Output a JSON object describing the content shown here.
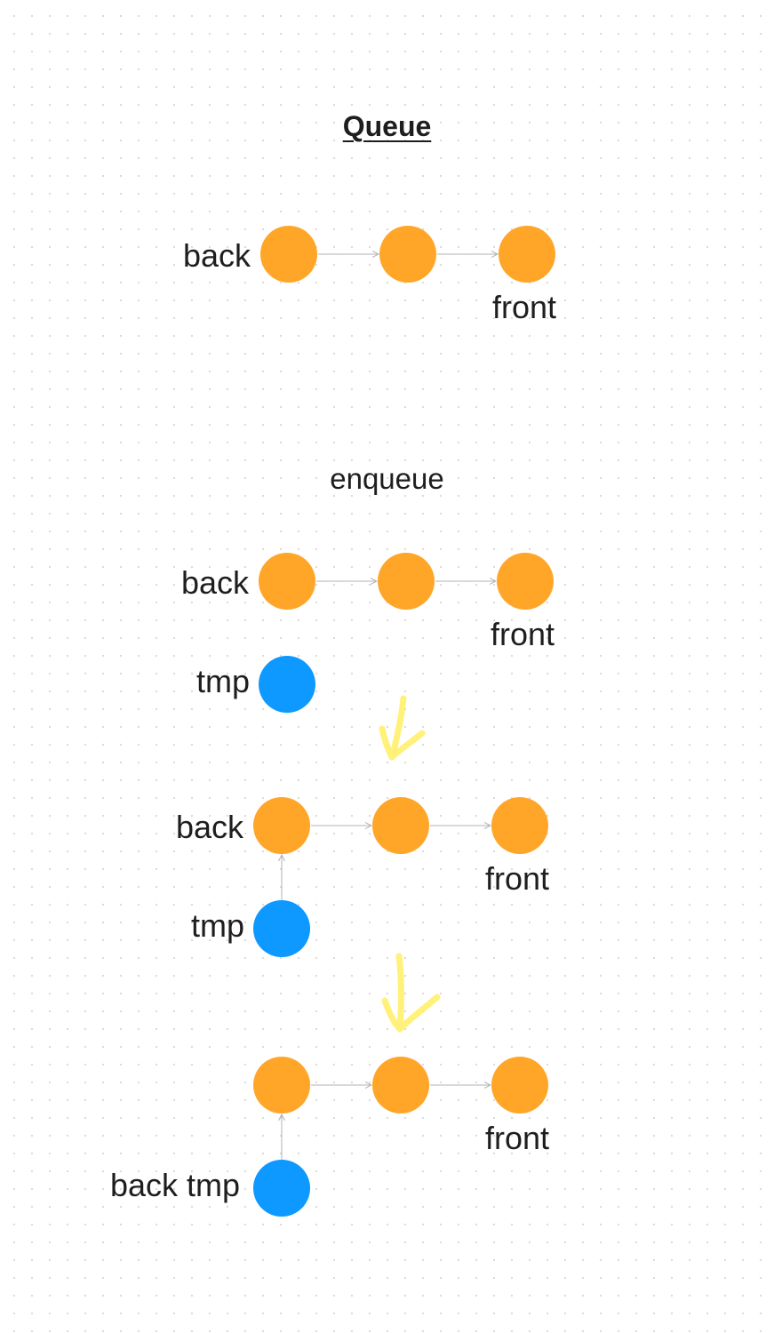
{
  "diagram": {
    "title": "Queue",
    "subtitle": "enqueue",
    "labels": {
      "back": "back",
      "front": "front",
      "tmp": "tmp",
      "back_tmp": "back tmp"
    },
    "colors": {
      "node_orange": "#ffa629",
      "node_blue": "#0d99ff",
      "connector": "#b3b3b3",
      "step_arrow": "#fff06b"
    },
    "icons": [
      "step-arrow-icon"
    ]
  }
}
